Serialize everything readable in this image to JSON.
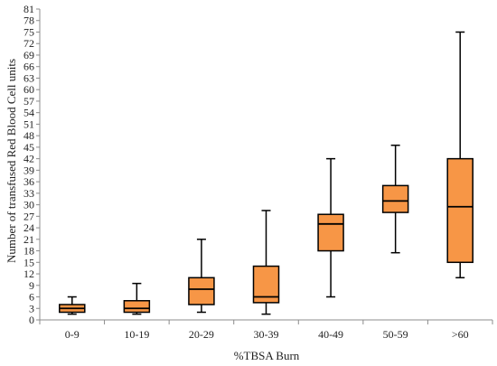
{
  "chart_data": {
    "type": "box",
    "xlabel": "%TBSA Burn",
    "ylabel": "Number of transfused Red Blood Cell units",
    "ylim": [
      0,
      81
    ],
    "yticks": [
      0,
      3,
      6,
      9,
      12,
      15,
      18,
      21,
      24,
      27,
      30,
      33,
      36,
      39,
      42,
      45,
      48,
      51,
      54,
      57,
      60,
      63,
      66,
      69,
      72,
      75,
      78,
      81
    ],
    "categories": [
      "0-9",
      "10-19",
      "20-29",
      "30-39",
      "40-49",
      "50-59",
      ">60"
    ],
    "boxes": [
      {
        "category": "0-9",
        "min": 1.5,
        "q1": 2,
        "median": 3,
        "q3": 4,
        "max": 6
      },
      {
        "category": "10-19",
        "min": 1.5,
        "q1": 2,
        "median": 3,
        "q3": 5,
        "max": 9.5
      },
      {
        "category": "20-29",
        "min": 2,
        "q1": 4,
        "median": 8,
        "q3": 11,
        "max": 21
      },
      {
        "category": "30-39",
        "min": 1.5,
        "q1": 4.5,
        "median": 6,
        "q3": 14,
        "max": 28.5
      },
      {
        "category": "40-49",
        "min": 6,
        "q1": 18,
        "median": 25,
        "q3": 27.5,
        "max": 42
      },
      {
        "category": "50-59",
        "min": 17.5,
        "q1": 28,
        "median": 31,
        "q3": 35,
        "max": 45.5
      },
      {
        "category": ">60",
        "min": 11,
        "q1": 15,
        "median": 29.5,
        "q3": 42,
        "max": 75
      }
    ],
    "colors": {
      "box_fill": "#F79646",
      "stroke": "#000000",
      "axis": "#8c8c8c"
    },
    "grid": false,
    "legend": "none"
  }
}
